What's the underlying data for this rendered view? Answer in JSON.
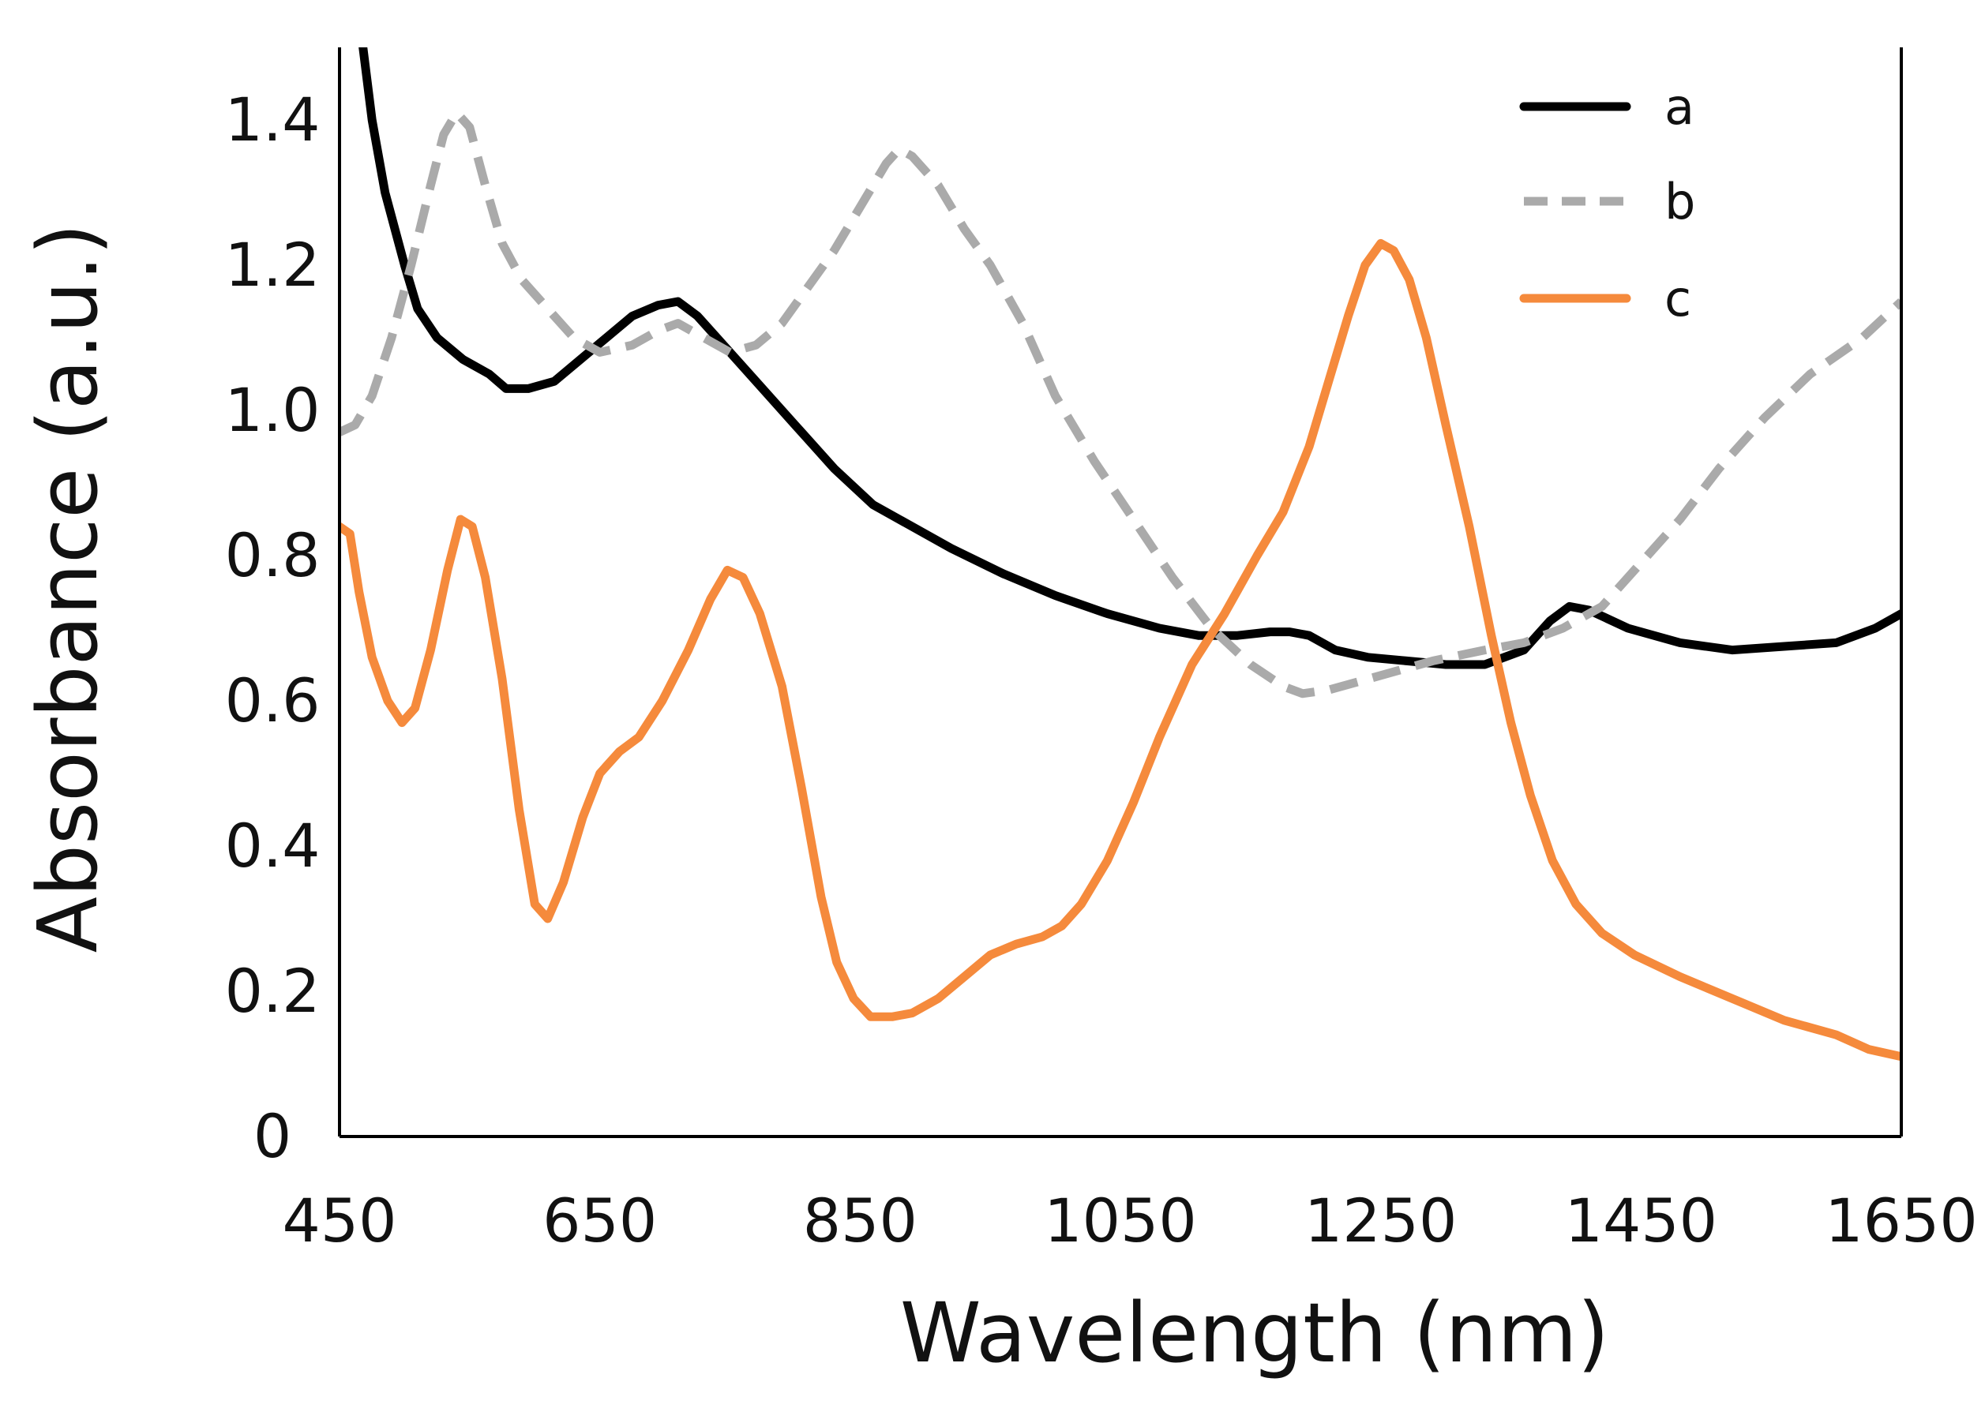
{
  "chart_data": {
    "type": "line",
    "title": "",
    "xlabel": "Wavelength (nm)",
    "ylabel": "Absorbance (a.u.)",
    "xlim": [
      450,
      1650
    ],
    "ylim": [
      0,
      1.5
    ],
    "xticks": [
      {
        "value": 450,
        "label": "450"
      },
      {
        "value": 650,
        "label": "650"
      },
      {
        "value": 850,
        "label": "850"
      },
      {
        "value": 1050,
        "label": "1050"
      },
      {
        "value": 1250,
        "label": "1250"
      },
      {
        "value": 1450,
        "label": "1450"
      },
      {
        "value": 1650,
        "label": "1650"
      }
    ],
    "yticks": [
      {
        "value": 0,
        "label": "0"
      },
      {
        "value": 0.2,
        "label": "0.2"
      },
      {
        "value": 0.4,
        "label": "0.4"
      },
      {
        "value": 0.6,
        "label": "0.6"
      },
      {
        "value": 0.8,
        "label": "0.8"
      },
      {
        "value": 1.0,
        "label": "1.0"
      },
      {
        "value": 1.2,
        "label": "1.2"
      },
      {
        "value": 1.4,
        "label": "1.4"
      }
    ],
    "grid": false,
    "legend_position": "top-right",
    "series": [
      {
        "name": "a",
        "color": "#000000",
        "style": "solid",
        "points": [
          [
            468,
            1.5
          ],
          [
            475,
            1.4
          ],
          [
            485,
            1.3
          ],
          [
            500,
            1.2
          ],
          [
            510,
            1.14
          ],
          [
            525,
            1.1
          ],
          [
            545,
            1.07
          ],
          [
            565,
            1.05
          ],
          [
            578,
            1.03
          ],
          [
            595,
            1.03
          ],
          [
            615,
            1.04
          ],
          [
            635,
            1.07
          ],
          [
            655,
            1.1
          ],
          [
            675,
            1.13
          ],
          [
            695,
            1.145
          ],
          [
            710,
            1.15
          ],
          [
            725,
            1.13
          ],
          [
            745,
            1.09
          ],
          [
            770,
            1.04
          ],
          [
            800,
            0.98
          ],
          [
            830,
            0.92
          ],
          [
            860,
            0.87
          ],
          [
            890,
            0.84
          ],
          [
            920,
            0.81
          ],
          [
            960,
            0.775
          ],
          [
            1000,
            0.745
          ],
          [
            1040,
            0.72
          ],
          [
            1080,
            0.7
          ],
          [
            1110,
            0.69
          ],
          [
            1140,
            0.69
          ],
          [
            1165,
            0.695
          ],
          [
            1180,
            0.695
          ],
          [
            1195,
            0.69
          ],
          [
            1215,
            0.67
          ],
          [
            1240,
            0.66
          ],
          [
            1270,
            0.655
          ],
          [
            1300,
            0.65
          ],
          [
            1330,
            0.65
          ],
          [
            1360,
            0.67
          ],
          [
            1380,
            0.71
          ],
          [
            1395,
            0.73
          ],
          [
            1410,
            0.725
          ],
          [
            1440,
            0.7
          ],
          [
            1480,
            0.68
          ],
          [
            1520,
            0.67
          ],
          [
            1560,
            0.675
          ],
          [
            1600,
            0.68
          ],
          [
            1630,
            0.7
          ],
          [
            1650,
            0.72
          ]
        ]
      },
      {
        "name": "b",
        "color": "#aaaaaa",
        "style": "dashed",
        "points": [
          [
            450,
            0.97
          ],
          [
            462,
            0.98
          ],
          [
            475,
            1.02
          ],
          [
            490,
            1.1
          ],
          [
            505,
            1.2
          ],
          [
            520,
            1.31
          ],
          [
            530,
            1.38
          ],
          [
            540,
            1.41
          ],
          [
            550,
            1.39
          ],
          [
            562,
            1.31
          ],
          [
            575,
            1.23
          ],
          [
            590,
            1.18
          ],
          [
            610,
            1.14
          ],
          [
            630,
            1.1
          ],
          [
            650,
            1.08
          ],
          [
            675,
            1.09
          ],
          [
            695,
            1.11
          ],
          [
            710,
            1.12
          ],
          [
            730,
            1.1
          ],
          [
            750,
            1.08
          ],
          [
            770,
            1.09
          ],
          [
            790,
            1.12
          ],
          [
            810,
            1.17
          ],
          [
            830,
            1.22
          ],
          [
            850,
            1.28
          ],
          [
            870,
            1.34
          ],
          [
            880,
            1.36
          ],
          [
            890,
            1.35
          ],
          [
            910,
            1.31
          ],
          [
            930,
            1.25
          ],
          [
            950,
            1.2
          ],
          [
            975,
            1.12
          ],
          [
            1000,
            1.02
          ],
          [
            1030,
            0.93
          ],
          [
            1060,
            0.85
          ],
          [
            1090,
            0.77
          ],
          [
            1120,
            0.7
          ],
          [
            1150,
            0.65
          ],
          [
            1175,
            0.62
          ],
          [
            1190,
            0.61
          ],
          [
            1210,
            0.615
          ],
          [
            1250,
            0.635
          ],
          [
            1290,
            0.655
          ],
          [
            1330,
            0.67
          ],
          [
            1360,
            0.68
          ],
          [
            1390,
            0.7
          ],
          [
            1420,
            0.73
          ],
          [
            1450,
            0.79
          ],
          [
            1480,
            0.85
          ],
          [
            1510,
            0.92
          ],
          [
            1545,
            0.99
          ],
          [
            1580,
            1.05
          ],
          [
            1620,
            1.1
          ],
          [
            1650,
            1.15
          ]
        ]
      },
      {
        "name": "c",
        "color": "#f58a3c",
        "style": "solid",
        "points": [
          [
            450,
            0.84
          ],
          [
            458,
            0.83
          ],
          [
            465,
            0.75
          ],
          [
            475,
            0.66
          ],
          [
            487,
            0.6
          ],
          [
            498,
            0.57
          ],
          [
            508,
            0.59
          ],
          [
            520,
            0.67
          ],
          [
            533,
            0.78
          ],
          [
            543,
            0.85
          ],
          [
            552,
            0.84
          ],
          [
            562,
            0.77
          ],
          [
            575,
            0.63
          ],
          [
            588,
            0.45
          ],
          [
            600,
            0.32
          ],
          [
            610,
            0.3
          ],
          [
            622,
            0.35
          ],
          [
            637,
            0.44
          ],
          [
            650,
            0.5
          ],
          [
            665,
            0.53
          ],
          [
            680,
            0.55
          ],
          [
            698,
            0.6
          ],
          [
            718,
            0.67
          ],
          [
            735,
            0.74
          ],
          [
            748,
            0.78
          ],
          [
            760,
            0.77
          ],
          [
            773,
            0.72
          ],
          [
            790,
            0.62
          ],
          [
            805,
            0.48
          ],
          [
            820,
            0.33
          ],
          [
            832,
            0.24
          ],
          [
            845,
            0.19
          ],
          [
            858,
            0.165
          ],
          [
            875,
            0.165
          ],
          [
            890,
            0.17
          ],
          [
            910,
            0.19
          ],
          [
            930,
            0.22
          ],
          [
            950,
            0.25
          ],
          [
            970,
            0.265
          ],
          [
            990,
            0.275
          ],
          [
            1005,
            0.29
          ],
          [
            1020,
            0.32
          ],
          [
            1040,
            0.38
          ],
          [
            1060,
            0.46
          ],
          [
            1080,
            0.55
          ],
          [
            1105,
            0.65
          ],
          [
            1130,
            0.72
          ],
          [
            1155,
            0.8
          ],
          [
            1175,
            0.86
          ],
          [
            1195,
            0.95
          ],
          [
            1210,
            1.04
          ],
          [
            1225,
            1.13
          ],
          [
            1238,
            1.2
          ],
          [
            1250,
            1.23
          ],
          [
            1260,
            1.22
          ],
          [
            1272,
            1.18
          ],
          [
            1285,
            1.1
          ],
          [
            1300,
            0.98
          ],
          [
            1318,
            0.84
          ],
          [
            1335,
            0.69
          ],
          [
            1350,
            0.57
          ],
          [
            1365,
            0.47
          ],
          [
            1382,
            0.38
          ],
          [
            1400,
            0.32
          ],
          [
            1420,
            0.28
          ],
          [
            1445,
            0.25
          ],
          [
            1480,
            0.22
          ],
          [
            1520,
            0.19
          ],
          [
            1560,
            0.16
          ],
          [
            1600,
            0.14
          ],
          [
            1625,
            0.12
          ],
          [
            1650,
            0.11
          ]
        ]
      }
    ]
  }
}
